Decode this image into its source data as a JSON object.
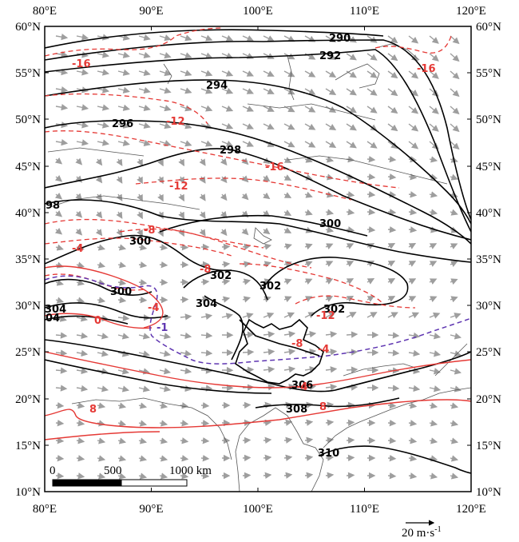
{
  "map": {
    "lon_ticks": [
      "80°E",
      "90°E",
      "100°E",
      "110°E",
      "120°E"
    ],
    "lat_ticks": [
      "60°N",
      "55°N",
      "50°N",
      "45°N",
      "40°N",
      "35°N",
      "30°N",
      "25°N",
      "20°N",
      "15°N",
      "10°N"
    ],
    "geopotential_labels": [
      "290",
      "292",
      "294",
      "296",
      "298",
      "98",
      "300",
      "300",
      "300",
      "302",
      "302",
      "302",
      "304",
      "304",
      "04",
      "306",
      "308",
      "310"
    ],
    "temperature_labels": [
      "-16",
      "-16",
      "-12",
      "-12",
      "-16",
      "-8",
      "-8",
      "-4",
      "-4",
      "0",
      "-12",
      "-4",
      "-8",
      "-4",
      "8",
      "8"
    ],
    "purple_labels": [
      "-1"
    ],
    "scale_bar": {
      "start": "0",
      "mid": "500",
      "end": "1000 km"
    },
    "wind_reference": {
      "label": "20 m·s",
      "exponent": "-1"
    },
    "colors": {
      "geopotential": "#000000",
      "temperature": "#e53935",
      "purple_contour": "#5e35b1",
      "wind": "#9e9e9e",
      "coast": "#444444"
    }
  }
}
